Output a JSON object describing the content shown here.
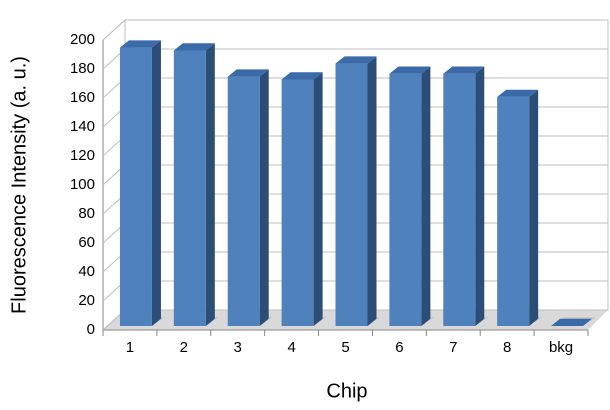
{
  "chart_data": {
    "type": "bar3d",
    "x_label": "Chip",
    "y_label": "Fluorescence Intensity (a. u.)",
    "categories": [
      "1",
      "2",
      "3",
      "4",
      "5",
      "6",
      "7",
      "8",
      "bkg"
    ],
    "values": [
      192,
      190,
      172,
      170,
      181,
      174,
      174,
      158,
      0
    ],
    "color": "#4f81bd",
    "ylim": [
      0,
      200
    ],
    "yticks": [
      0,
      20,
      40,
      60,
      80,
      100,
      120,
      140,
      160,
      180,
      200
    ],
    "grid": true
  }
}
